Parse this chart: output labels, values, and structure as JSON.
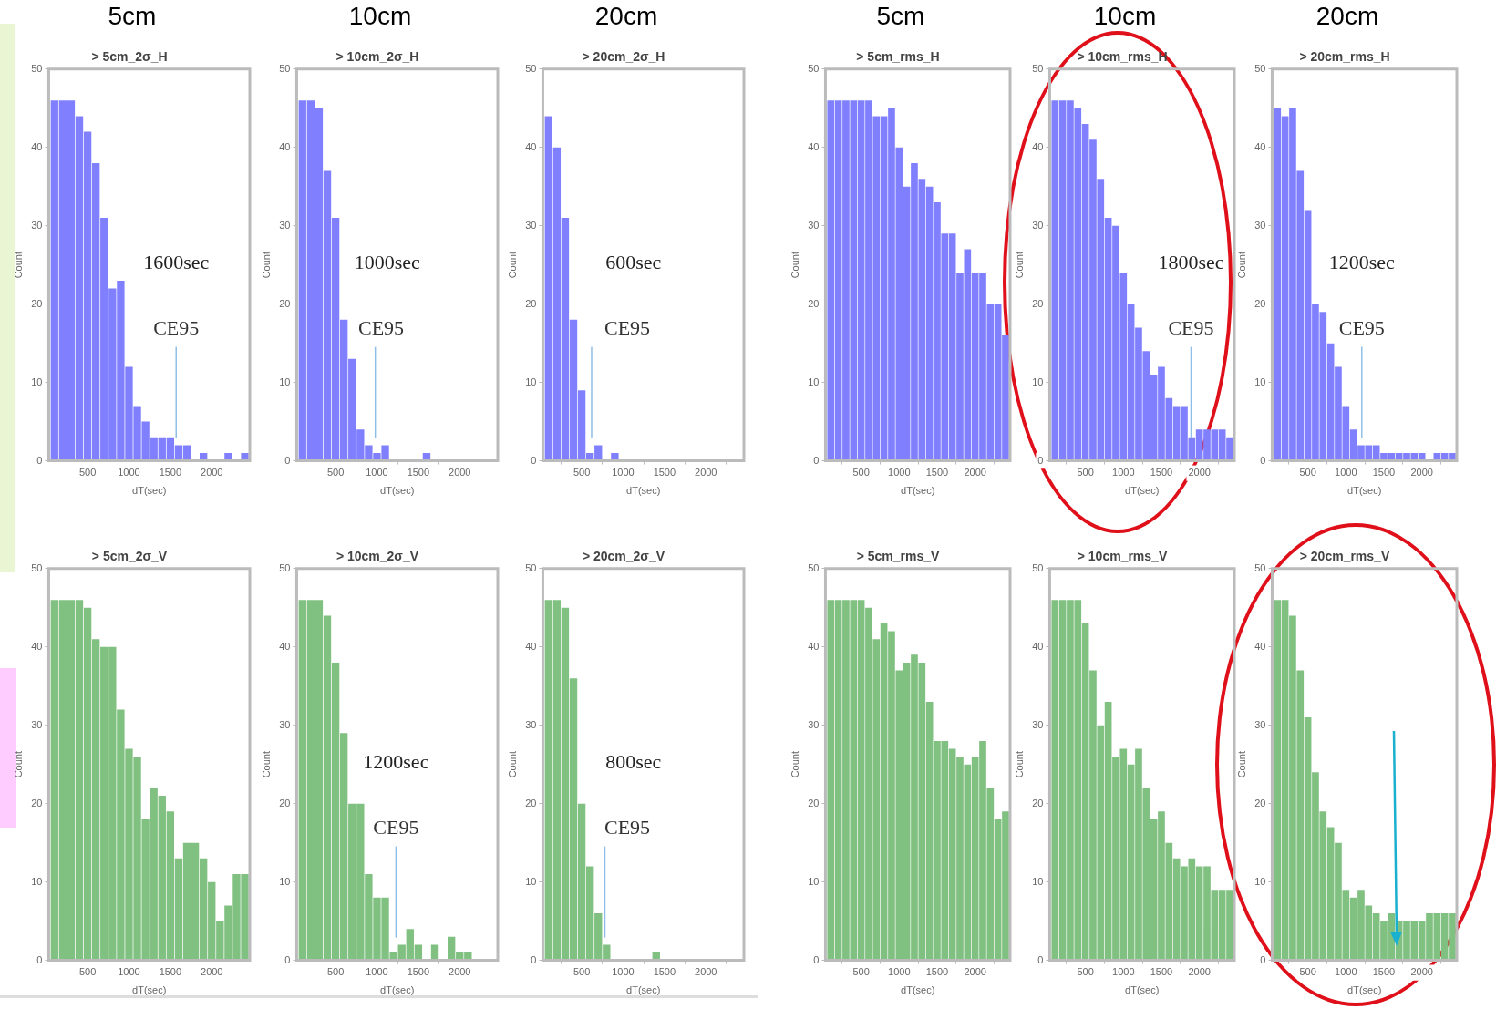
{
  "chart_data": [
    {
      "type": "histogram",
      "subtitle": "5cm",
      "title": "> 5cm_2σ_H",
      "xlabel": "dT(sec)",
      "ylabel": "Count",
      "color": "#8080ff",
      "bins": [
        50,
        150,
        250,
        350,
        450,
        550,
        650,
        750,
        850,
        950,
        1050,
        1150,
        1250,
        1350,
        1450,
        1550,
        1650,
        1750,
        1850,
        1950,
        2050,
        2150,
        2250,
        2350,
        2450
      ],
      "values": [
        46,
        46,
        46,
        44,
        42,
        38,
        31,
        22,
        23,
        12,
        7,
        5,
        3,
        3,
        3,
        2,
        2,
        0,
        1,
        0,
        0,
        1,
        0,
        1
      ],
      "xlim": [
        30,
        2460
      ],
      "xticks": [
        500,
        1000,
        1500,
        2000
      ],
      "ylim": [
        0,
        50
      ],
      "yticks": [
        0,
        10,
        20,
        30,
        40,
        50
      ],
      "annotations": [
        "1600sec"
      ],
      "ref_lines": [
        {
          "axis": "x",
          "value": 1570,
          "label": "CE95"
        }
      ]
    },
    {
      "type": "histogram",
      "subtitle": "10cm",
      "title": "> 10cm_2σ_H",
      "xlabel": "dT(sec)",
      "ylabel": "Count",
      "color": "#8080ff",
      "bins": [
        50,
        150,
        250,
        350,
        450,
        550,
        650,
        750,
        850,
        950,
        1050,
        1150,
        1250,
        1350,
        1450,
        1550,
        1650,
        1750,
        1850,
        1950,
        2050,
        2150,
        2250,
        2350,
        2450
      ],
      "values": [
        46,
        46,
        45,
        37,
        31,
        18,
        13,
        4,
        2,
        1,
        2,
        0,
        0,
        0,
        0,
        1,
        0,
        0,
        0,
        0,
        0,
        0,
        0,
        0
      ],
      "xlim": [
        30,
        2460
      ],
      "xticks": [
        500,
        1000,
        1500,
        2000
      ],
      "ylim": [
        0,
        50
      ],
      "yticks": [
        0,
        10,
        20,
        30,
        40,
        50
      ],
      "annotations": [
        "1000sec"
      ],
      "ref_lines": [
        {
          "axis": "x",
          "value": 980,
          "label": "CE95"
        }
      ]
    },
    {
      "type": "histogram",
      "subtitle": "20cm",
      "title": "> 20cm_2σ_H",
      "xlabel": "dT(sec)",
      "ylabel": "Count",
      "color": "#8080ff",
      "bins": [
        50,
        150,
        250,
        350,
        450,
        550,
        650,
        750,
        850,
        950,
        1050,
        1150,
        1250,
        1350,
        1450,
        1550,
        1650,
        1750,
        1850,
        1950,
        2050,
        2150,
        2250,
        2350,
        2450
      ],
      "values": [
        44,
        40,
        31,
        18,
        9,
        1,
        2,
        0,
        1,
        0,
        0,
        0,
        0,
        0,
        0,
        0,
        0,
        0,
        0,
        0,
        0,
        0,
        0,
        0
      ],
      "xlim": [
        30,
        2460
      ],
      "xticks": [
        500,
        1000,
        1500,
        2000
      ],
      "ylim": [
        0,
        50
      ],
      "yticks": [
        0,
        10,
        20,
        30,
        40,
        50
      ],
      "annotations": [
        "600sec"
      ],
      "ref_lines": [
        {
          "axis": "x",
          "value": 620,
          "label": "CE95"
        }
      ]
    },
    {
      "type": "histogram",
      "subtitle": "5cm",
      "title": "> 5cm_rms_H",
      "xlabel": "dT(sec)",
      "ylabel": "Count",
      "color": "#8080ff",
      "bins": [
        50,
        150,
        250,
        350,
        450,
        550,
        650,
        750,
        850,
        950,
        1050,
        1150,
        1250,
        1350,
        1450,
        1550,
        1650,
        1750,
        1850,
        1950,
        2050,
        2150,
        2250,
        2350,
        2450
      ],
      "values": [
        46,
        46,
        46,
        46,
        46,
        46,
        44,
        44,
        45,
        40,
        35,
        38,
        36,
        35,
        33,
        29,
        29,
        24,
        27,
        24,
        24,
        20,
        20,
        16
      ],
      "xlim": [
        30,
        2460
      ],
      "xticks": [
        500,
        1000,
        1500,
        2000
      ],
      "ylim": [
        0,
        50
      ],
      "yticks": [
        0,
        10,
        20,
        30,
        40,
        50
      ]
    },
    {
      "type": "histogram",
      "subtitle": "10cm",
      "title": "> 10cm_rms_H",
      "xlabel": "dT(sec)",
      "ylabel": "Count",
      "color": "#8080ff",
      "bins": [
        50,
        150,
        250,
        350,
        450,
        550,
        650,
        750,
        850,
        950,
        1050,
        1150,
        1250,
        1350,
        1450,
        1550,
        1650,
        1750,
        1850,
        1950,
        2050,
        2150,
        2250,
        2350,
        2450
      ],
      "values": [
        46,
        46,
        46,
        45,
        43,
        41,
        36,
        31,
        30,
        24,
        20,
        17,
        14,
        11,
        12,
        8,
        7,
        7,
        3,
        4,
        4,
        4,
        4,
        3
      ],
      "xlim": [
        30,
        2460
      ],
      "xticks": [
        500,
        1000,
        1500,
        2000
      ],
      "ylim": [
        0,
        50
      ],
      "yticks": [
        0,
        10,
        20,
        30,
        40,
        50
      ],
      "annotations": [
        "1800sec"
      ],
      "ref_lines": [
        {
          "axis": "x",
          "value": 1890,
          "label": "CE95"
        }
      ]
    },
    {
      "type": "histogram",
      "subtitle": "20cm",
      "title": "> 20cm_rms_H",
      "xlabel": "dT(sec)",
      "ylabel": "Count",
      "color": "#8080ff",
      "bins": [
        50,
        150,
        250,
        350,
        450,
        550,
        650,
        750,
        850,
        950,
        1050,
        1150,
        1250,
        1350,
        1450,
        1550,
        1650,
        1750,
        1850,
        1950,
        2050,
        2150,
        2250,
        2350,
        2450
      ],
      "values": [
        45,
        44,
        45,
        37,
        32,
        20,
        19,
        15,
        12,
        7,
        4,
        2,
        2,
        2,
        1,
        1,
        1,
        1,
        1,
        1,
        0,
        1,
        1,
        1
      ],
      "xlim": [
        30,
        2460
      ],
      "xticks": [
        500,
        1000,
        1500,
        2000
      ],
      "ylim": [
        0,
        50
      ],
      "yticks": [
        0,
        10,
        20,
        30,
        40,
        50
      ],
      "annotations": [
        "1200sec"
      ],
      "ref_lines": [
        {
          "axis": "x",
          "value": 1210,
          "label": "CE95"
        }
      ]
    },
    {
      "type": "histogram",
      "title": "> 5cm_2σ_V",
      "xlabel": "dT(sec)",
      "ylabel": "Count",
      "color": "#80c080",
      "bins": [
        50,
        150,
        250,
        350,
        450,
        550,
        650,
        750,
        850,
        950,
        1050,
        1150,
        1250,
        1350,
        1450,
        1550,
        1650,
        1750,
        1850,
        1950,
        2050,
        2150,
        2250,
        2350,
        2450
      ],
      "values": [
        46,
        46,
        46,
        46,
        45,
        41,
        40,
        40,
        32,
        27,
        26,
        18,
        22,
        21,
        19,
        13,
        15,
        15,
        13,
        10,
        5,
        7,
        11,
        11
      ],
      "xlim": [
        30,
        2460
      ],
      "xticks": [
        500,
        1000,
        1500,
        2000
      ],
      "ylim": [
        0,
        50
      ],
      "yticks": [
        0,
        10,
        20,
        30,
        40,
        50
      ]
    },
    {
      "type": "histogram",
      "title": "> 10cm_2σ_V",
      "xlabel": "dT(sec)",
      "ylabel": "Count",
      "color": "#80c080",
      "bins": [
        50,
        150,
        250,
        350,
        450,
        550,
        650,
        750,
        850,
        950,
        1050,
        1150,
        1250,
        1350,
        1450,
        1550,
        1650,
        1750,
        1850,
        1950,
        2050,
        2150,
        2250,
        2350,
        2450
      ],
      "values": [
        46,
        46,
        46,
        44,
        38,
        29,
        20,
        20,
        11,
        8,
        8,
        1,
        2,
        4,
        2,
        0,
        2,
        0,
        3,
        1,
        1,
        0,
        0,
        0
      ],
      "xlim": [
        30,
        2460
      ],
      "xticks": [
        500,
        1000,
        1500,
        2000
      ],
      "ylim": [
        0,
        50
      ],
      "yticks": [
        0,
        10,
        20,
        30,
        40,
        50
      ],
      "annotations": [
        "1200sec"
      ],
      "ref_lines": [
        {
          "axis": "x",
          "value": 1230,
          "label": "CE95"
        }
      ]
    },
    {
      "type": "histogram",
      "title": "> 20cm_2σ_V",
      "xlabel": "dT(sec)",
      "ylabel": "Count",
      "color": "#80c080",
      "bins": [
        50,
        150,
        250,
        350,
        450,
        550,
        650,
        750,
        850,
        950,
        1050,
        1150,
        1250,
        1350,
        1450,
        1550,
        1650,
        1750,
        1850,
        1950,
        2050,
        2150,
        2250,
        2350,
        2450
      ],
      "values": [
        46,
        46,
        45,
        36,
        20,
        12,
        6,
        2,
        0,
        0,
        0,
        0,
        0,
        1,
        0,
        0,
        0,
        0,
        0,
        0,
        0,
        0,
        0,
        0
      ],
      "xlim": [
        30,
        2460
      ],
      "xticks": [
        500,
        1000,
        1500,
        2000
      ],
      "ylim": [
        0,
        50
      ],
      "yticks": [
        0,
        10,
        20,
        30,
        40,
        50
      ],
      "annotations": [
        "800sec"
      ],
      "ref_lines": [
        {
          "axis": "x",
          "value": 780,
          "label": "CE95"
        }
      ]
    },
    {
      "type": "histogram",
      "title": "> 5cm_rms_V",
      "xlabel": "dT(sec)",
      "ylabel": "Count",
      "color": "#80c080",
      "bins": [
        50,
        150,
        250,
        350,
        450,
        550,
        650,
        750,
        850,
        950,
        1050,
        1150,
        1250,
        1350,
        1450,
        1550,
        1650,
        1750,
        1850,
        1950,
        2050,
        2150,
        2250,
        2350,
        2450
      ],
      "values": [
        46,
        46,
        46,
        46,
        46,
        45,
        41,
        43,
        42,
        37,
        38,
        39,
        38,
        33,
        28,
        28,
        27,
        26,
        25,
        26,
        28,
        22,
        18,
        19
      ],
      "xlim": [
        30,
        2460
      ],
      "xticks": [
        500,
        1000,
        1500,
        2000
      ],
      "ylim": [
        0,
        50
      ],
      "yticks": [
        0,
        10,
        20,
        30,
        40,
        50
      ]
    },
    {
      "type": "histogram",
      "title": "> 10cm_rms_V",
      "xlabel": "dT(sec)",
      "ylabel": "Count",
      "color": "#80c080",
      "bins": [
        50,
        150,
        250,
        350,
        450,
        550,
        650,
        750,
        850,
        950,
        1050,
        1150,
        1250,
        1350,
        1450,
        1550,
        1650,
        1750,
        1850,
        1950,
        2050,
        2150,
        2250,
        2350,
        2450
      ],
      "values": [
        46,
        46,
        46,
        46,
        43,
        37,
        30,
        33,
        26,
        27,
        25,
        27,
        22,
        18,
        19,
        15,
        13,
        12,
        13,
        12,
        12,
        9,
        9,
        9
      ],
      "xlim": [
        30,
        2460
      ],
      "xticks": [
        500,
        1000,
        1500,
        2000
      ],
      "ylim": [
        0,
        50
      ],
      "yticks": [
        0,
        10,
        20,
        30,
        40,
        50
      ]
    },
    {
      "type": "histogram",
      "title": "> 20cm_rms_V",
      "xlabel": "dT(sec)",
      "ylabel": "Count",
      "color": "#80c080",
      "bins": [
        50,
        150,
        250,
        350,
        450,
        550,
        650,
        750,
        850,
        950,
        1050,
        1150,
        1250,
        1350,
        1450,
        1550,
        1650,
        1750,
        1850,
        1950,
        2050,
        2150,
        2250,
        2350,
        2450
      ],
      "values": [
        46,
        46,
        44,
        37,
        31,
        24,
        19,
        17,
        15,
        9,
        8,
        9,
        7,
        6,
        5,
        6,
        5,
        5,
        5,
        5,
        6,
        6,
        6,
        6
      ],
      "xlim": [
        30,
        2460
      ],
      "xticks": [
        500,
        1000,
        1500,
        2000
      ],
      "ylim": [
        0,
        50
      ],
      "yticks": [
        0,
        10,
        20,
        30,
        40,
        50
      ]
    }
  ]
}
